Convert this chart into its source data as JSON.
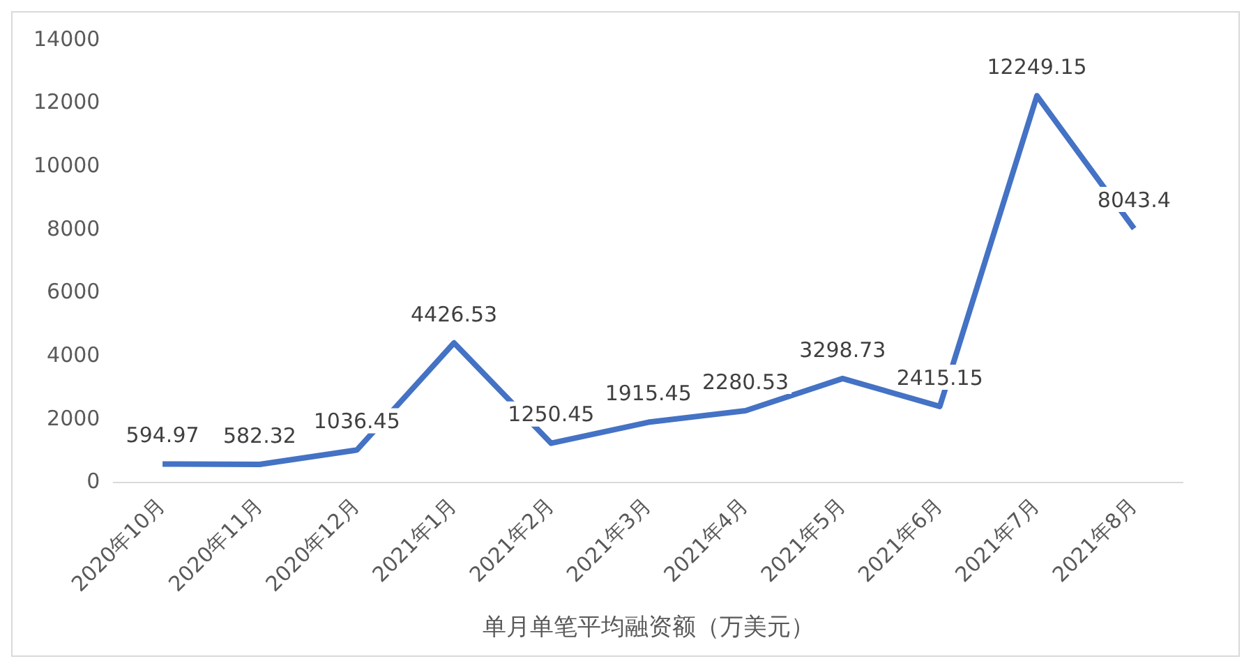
{
  "chart_data": {
    "type": "line",
    "xlabel": "单月单笔平均融资额（万美元）",
    "categories": [
      "2020年10月",
      "2020年11月",
      "2020年12月",
      "2021年1月",
      "2021年2月",
      "2021年3月",
      "2021年4月",
      "2021年5月",
      "2021年6月",
      "2021年7月",
      "2021年8月"
    ],
    "series": [
      {
        "color": "#4472c4",
        "values": [
          594.97,
          582.32,
          1036.45,
          4426.53,
          1250.45,
          1915.45,
          2280.53,
          3298.73,
          2415.15,
          12249.15,
          8043.4
        ]
      }
    ],
    "ylim": [
      0,
      14000
    ],
    "yticks": [
      0,
      2000,
      4000,
      6000,
      8000,
      10000,
      12000,
      14000
    ],
    "grid": false,
    "legend": false,
    "marker": "none",
    "line_style": "solid",
    "data_labels": true
  }
}
